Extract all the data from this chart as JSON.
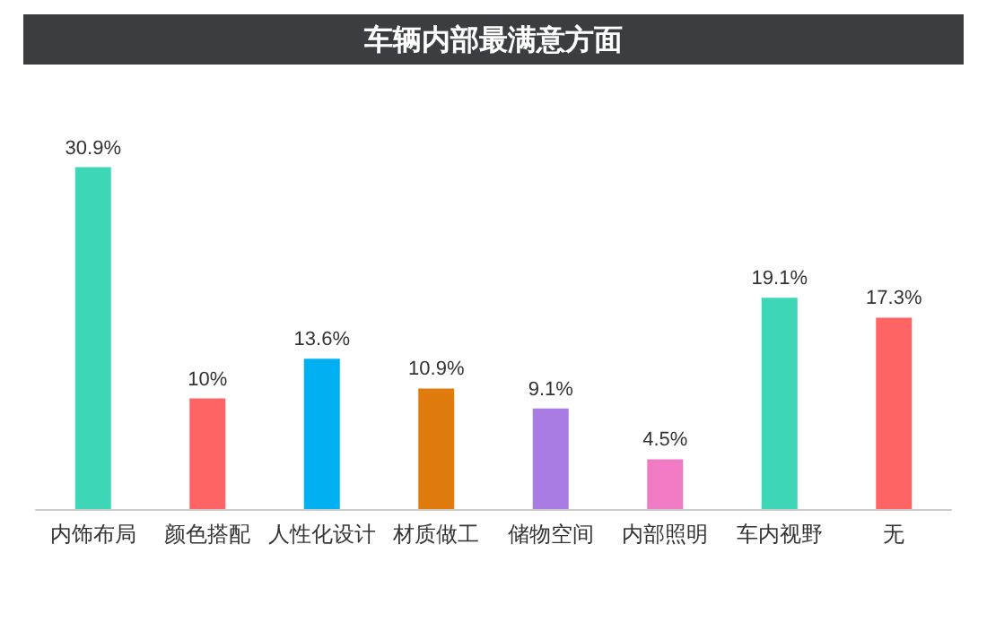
{
  "chart_data": {
    "type": "bar",
    "title": "车辆内部最满意方面",
    "categories": [
      "内饰布局",
      "颜色搭配",
      "人性化设计",
      "材质做工",
      "储物空间",
      "内部照明",
      "车内视野",
      "无"
    ],
    "values": [
      30.9,
      10,
      13.6,
      10.9,
      9.1,
      4.5,
      19.1,
      17.3
    ],
    "colors": [
      "#3dd6b7",
      "#ff6464",
      "#00b0f0",
      "#e07b0e",
      "#a97ce3",
      "#f07ac3",
      "#3dd6b7",
      "#ff6464"
    ],
    "value_labels": [
      "30.9%",
      "10%",
      "13.6%",
      "10.9%",
      "9.1%",
      "4.5%",
      "19.1%",
      "17.3%"
    ]
  }
}
